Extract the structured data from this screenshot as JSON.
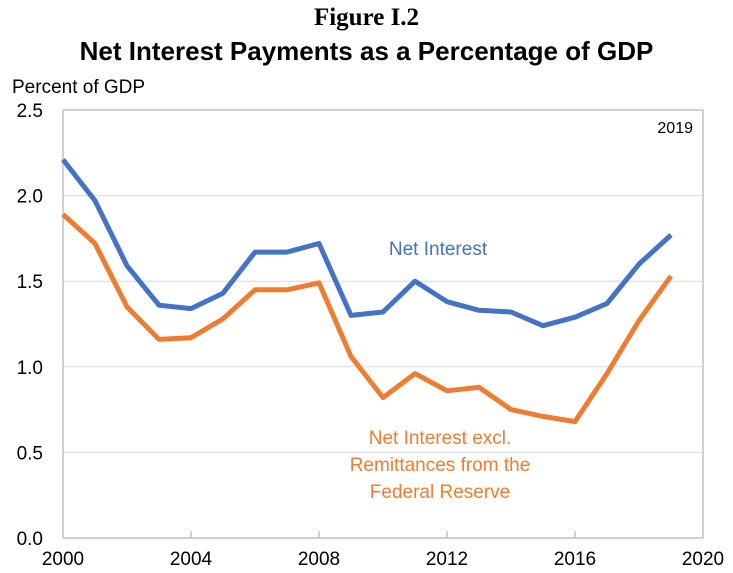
{
  "figure_label": "Figure I.2",
  "chart_data": {
    "type": "line",
    "title": "Net Interest Payments as a Percentage of GDP",
    "ylabel": "Percent of GDP",
    "xlabel": "",
    "corner_label": "2019",
    "xlim": [
      2000,
      2020
    ],
    "ylim": [
      0,
      2.5
    ],
    "xticks": [
      "2000",
      "2004",
      "2008",
      "2012",
      "2016",
      "2020"
    ],
    "yticks": [
      "0.0",
      "0.5",
      "1.0",
      "1.5",
      "2.0",
      "2.5"
    ],
    "grid": true,
    "x": [
      2000,
      2001,
      2002,
      2003,
      2004,
      2005,
      2006,
      2007,
      2008,
      2009,
      2010,
      2011,
      2012,
      2013,
      2014,
      2015,
      2016,
      2017,
      2018,
      2019
    ],
    "series": [
      {
        "name": "Net Interest",
        "color": "#4472C4",
        "values": [
          2.21,
          1.97,
          1.59,
          1.36,
          1.34,
          1.43,
          1.67,
          1.67,
          1.72,
          1.3,
          1.32,
          1.5,
          1.38,
          1.33,
          1.32,
          1.24,
          1.29,
          1.37,
          1.6,
          1.77
        ]
      },
      {
        "name": "Net Interest excl. Remittances from the Federal Reserve",
        "color": "#ED7D31",
        "values": [
          1.89,
          1.72,
          1.35,
          1.16,
          1.17,
          1.28,
          1.45,
          1.45,
          1.49,
          1.06,
          0.82,
          0.96,
          0.86,
          0.88,
          0.75,
          0.71,
          0.68,
          0.96,
          1.27,
          1.53
        ]
      }
    ],
    "series_labels": [
      {
        "lines": [
          "Net Interest"
        ]
      },
      {
        "lines": [
          "Net Interest excl.",
          "Remittances from the",
          "Federal Reserve"
        ]
      }
    ]
  }
}
